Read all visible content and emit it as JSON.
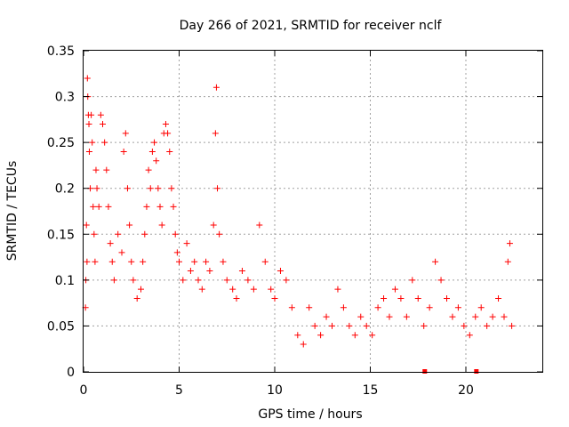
{
  "chart_data": {
    "type": "scatter",
    "title": "Day 266 of 2021, SRMTID for receiver nclf",
    "xlabel": "GPS time / hours",
    "ylabel": "SRMTID / TECUs",
    "xlim": [
      0,
      24
    ],
    "ylim": [
      0,
      0.35
    ],
    "xticks": [
      0,
      5,
      10,
      15,
      20
    ],
    "xtick_labels": [
      "0",
      "5",
      "10",
      "15",
      "20"
    ],
    "yticks": [
      0,
      0.05,
      0.1,
      0.15,
      0.2,
      0.25,
      0.3,
      0.35
    ],
    "ytick_labels": [
      "0",
      "0.05",
      "0.1",
      "0.15",
      "0.2",
      "0.25",
      "0.3",
      "0.35"
    ],
    "grid": true,
    "series": [
      {
        "name": "SRMTID",
        "marker": "plus",
        "color": "#ff0000",
        "points": [
          [
            0.1,
            0.07
          ],
          [
            0.12,
            0.1
          ],
          [
            0.15,
            0.16
          ],
          [
            0.18,
            0.12
          ],
          [
            0.2,
            0.32
          ],
          [
            0.22,
            0.3
          ],
          [
            0.25,
            0.28
          ],
          [
            0.28,
            0.27
          ],
          [
            0.3,
            0.24
          ],
          [
            0.35,
            0.2
          ],
          [
            0.4,
            0.28
          ],
          [
            0.45,
            0.25
          ],
          [
            0.5,
            0.18
          ],
          [
            0.55,
            0.15
          ],
          [
            0.6,
            0.12
          ],
          [
            0.65,
            0.22
          ],
          [
            0.7,
            0.2
          ],
          [
            0.8,
            0.18
          ],
          [
            0.9,
            0.28
          ],
          [
            1.0,
            0.27
          ],
          [
            1.1,
            0.25
          ],
          [
            1.2,
            0.22
          ],
          [
            1.3,
            0.18
          ],
          [
            1.4,
            0.14
          ],
          [
            1.5,
            0.12
          ],
          [
            1.6,
            0.1
          ],
          [
            1.8,
            0.15
          ],
          [
            2.0,
            0.13
          ],
          [
            2.1,
            0.24
          ],
          [
            2.2,
            0.26
          ],
          [
            2.3,
            0.2
          ],
          [
            2.4,
            0.16
          ],
          [
            2.5,
            0.12
          ],
          [
            2.6,
            0.1
          ],
          [
            2.8,
            0.08
          ],
          [
            3.0,
            0.09
          ],
          [
            3.1,
            0.12
          ],
          [
            3.2,
            0.15
          ],
          [
            3.3,
            0.18
          ],
          [
            3.4,
            0.22
          ],
          [
            3.5,
            0.2
          ],
          [
            3.6,
            0.24
          ],
          [
            3.7,
            0.25
          ],
          [
            3.8,
            0.23
          ],
          [
            3.9,
            0.2
          ],
          [
            4.0,
            0.18
          ],
          [
            4.1,
            0.16
          ],
          [
            4.2,
            0.26
          ],
          [
            4.3,
            0.27
          ],
          [
            4.4,
            0.26
          ],
          [
            4.5,
            0.24
          ],
          [
            4.6,
            0.2
          ],
          [
            4.7,
            0.18
          ],
          [
            4.8,
            0.15
          ],
          [
            4.9,
            0.13
          ],
          [
            5.0,
            0.12
          ],
          [
            5.2,
            0.1
          ],
          [
            5.4,
            0.14
          ],
          [
            5.6,
            0.11
          ],
          [
            5.8,
            0.12
          ],
          [
            6.0,
            0.1
          ],
          [
            6.2,
            0.09
          ],
          [
            6.4,
            0.12
          ],
          [
            6.6,
            0.11
          ],
          [
            6.8,
            0.16
          ],
          [
            6.9,
            0.26
          ],
          [
            6.95,
            0.31
          ],
          [
            7.0,
            0.2
          ],
          [
            7.1,
            0.15
          ],
          [
            7.3,
            0.12
          ],
          [
            7.5,
            0.1
          ],
          [
            7.8,
            0.09
          ],
          [
            8.0,
            0.08
          ],
          [
            8.3,
            0.11
          ],
          [
            8.6,
            0.1
          ],
          [
            8.9,
            0.09
          ],
          [
            9.2,
            0.16
          ],
          [
            9.5,
            0.12
          ],
          [
            9.8,
            0.09
          ],
          [
            10.0,
            0.08
          ],
          [
            10.3,
            0.11
          ],
          [
            10.6,
            0.1
          ],
          [
            10.9,
            0.07
          ],
          [
            11.2,
            0.04
          ],
          [
            11.5,
            0.03
          ],
          [
            11.8,
            0.07
          ],
          [
            12.1,
            0.05
          ],
          [
            12.4,
            0.04
          ],
          [
            12.7,
            0.06
          ],
          [
            13.0,
            0.05
          ],
          [
            13.3,
            0.09
          ],
          [
            13.6,
            0.07
          ],
          [
            13.9,
            0.05
          ],
          [
            14.2,
            0.04
          ],
          [
            14.5,
            0.06
          ],
          [
            14.8,
            0.05
          ],
          [
            15.1,
            0.04
          ],
          [
            15.4,
            0.07
          ],
          [
            15.7,
            0.08
          ],
          [
            16.0,
            0.06
          ],
          [
            16.3,
            0.09
          ],
          [
            16.6,
            0.08
          ],
          [
            16.9,
            0.06
          ],
          [
            17.2,
            0.1
          ],
          [
            17.5,
            0.08
          ],
          [
            17.8,
            0.05
          ],
          [
            18.1,
            0.07
          ],
          [
            18.4,
            0.12
          ],
          [
            18.7,
            0.1
          ],
          [
            19.0,
            0.08
          ],
          [
            19.3,
            0.06
          ],
          [
            19.6,
            0.07
          ],
          [
            19.9,
            0.05
          ],
          [
            20.2,
            0.04
          ],
          [
            20.5,
            0.06
          ],
          [
            20.8,
            0.07
          ],
          [
            21.1,
            0.05
          ],
          [
            21.4,
            0.06
          ],
          [
            21.7,
            0.08
          ],
          [
            22.0,
            0.06
          ],
          [
            22.2,
            0.12
          ],
          [
            22.3,
            0.14
          ],
          [
            22.4,
            0.05
          ]
        ]
      },
      {
        "name": "SRMTID (zero markers)",
        "marker": "square",
        "color": "#ff0000",
        "points": [
          [
            17.85,
            0.0
          ],
          [
            20.55,
            0.0
          ]
        ]
      }
    ]
  }
}
